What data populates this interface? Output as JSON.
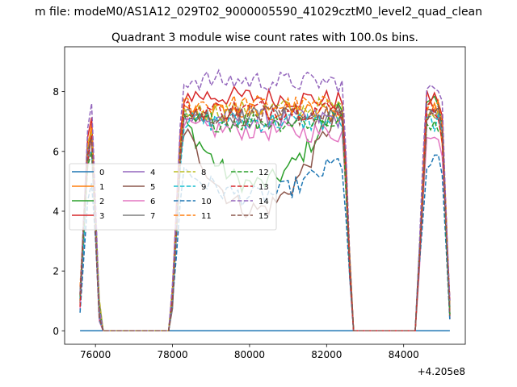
{
  "figure": {
    "suptitle": "m file: modeM0/AS1A12_029T02_9000005590_41029cztM0_level2_quad_clean",
    "title": "Quadrant 3 module wise count rates with 100.0s bins.",
    "offset_label": "+4.205e8"
  },
  "chart_data": {
    "type": "line",
    "title": "Quadrant 3 module wise count rates with 100.0s bins.",
    "xlabel": "",
    "ylabel": "",
    "x_offset": 420500000,
    "xlim": [
      75200,
      85600
    ],
    "ylim": [
      -0.45,
      9.5
    ],
    "x_ticks": [
      76000,
      78000,
      80000,
      82000,
      84000
    ],
    "x_tick_labels": [
      "76000",
      "78000",
      "80000",
      "82000",
      "84000"
    ],
    "y_ticks": [
      0,
      2,
      4,
      6,
      8
    ],
    "y_tick_labels": [
      "0",
      "2",
      "4",
      "6",
      "8"
    ],
    "grid": false,
    "legend_position": "center-left",
    "segments": [
      {
        "on": 75600,
        "off": 76100
      },
      {
        "on": 78000,
        "off": 82650
      },
      {
        "on": 84350,
        "off": 85200
      }
    ],
    "series": [
      {
        "name": "0",
        "color": "#1f77b4",
        "dash": "solid",
        "level": 0.0,
        "rise": 0,
        "trend": 0
      },
      {
        "name": "1",
        "color": "#ff7f0e",
        "dash": "solid",
        "level": 7.3,
        "rise": 0,
        "trend": 0
      },
      {
        "name": "2",
        "color": "#2ca02c",
        "dash": "solid",
        "level": 7.6,
        "rise": -2.6,
        "trend": -0.2
      },
      {
        "name": "3",
        "color": "#d62728",
        "dash": "solid",
        "level": 7.9,
        "rise": 0,
        "trend": -0.2
      },
      {
        "name": "4",
        "color": "#9467bd",
        "dash": "solid",
        "level": 7.1,
        "rise": 0,
        "trend": 0.0
      },
      {
        "name": "5",
        "color": "#8c564b",
        "dash": "solid",
        "level": 7.5,
        "rise": -3.3,
        "trend": -0.3
      },
      {
        "name": "6",
        "color": "#e377c2",
        "dash": "solid",
        "level": 6.8,
        "rise": 0,
        "trend": -0.2
      },
      {
        "name": "7",
        "color": "#7f7f7f",
        "dash": "solid",
        "level": 7.2,
        "rise": 0,
        "trend": -0.1
      },
      {
        "name": "8",
        "color": "#bcbd22",
        "dash": "dashed",
        "level": 7.3,
        "rise": 0,
        "trend": 0.2
      },
      {
        "name": "9",
        "color": "#17becf",
        "dash": "dashed",
        "level": 7.0,
        "rise": 0,
        "trend": 0
      },
      {
        "name": "10",
        "color": "#1f77b4",
        "dash": "dashed",
        "level": 5.6,
        "rise": -1.1,
        "trend": 0.0
      },
      {
        "name": "11",
        "color": "#ff7f0e",
        "dash": "dashed",
        "level": 7.6,
        "rise": 0,
        "trend": -0.1
      },
      {
        "name": "12",
        "color": "#2ca02c",
        "dash": "dashed",
        "level": 7.0,
        "rise": 0,
        "trend": 0
      },
      {
        "name": "13",
        "color": "#d62728",
        "dash": "dashed",
        "level": 7.4,
        "rise": 0,
        "trend": 0
      },
      {
        "name": "14",
        "color": "#9467bd",
        "dash": "dashed",
        "level": 8.4,
        "rise": 0,
        "trend": -0.1
      },
      {
        "name": "15",
        "color": "#8c564b",
        "dash": "dashed",
        "level": 7.2,
        "rise": 0,
        "trend": 0
      }
    ]
  }
}
